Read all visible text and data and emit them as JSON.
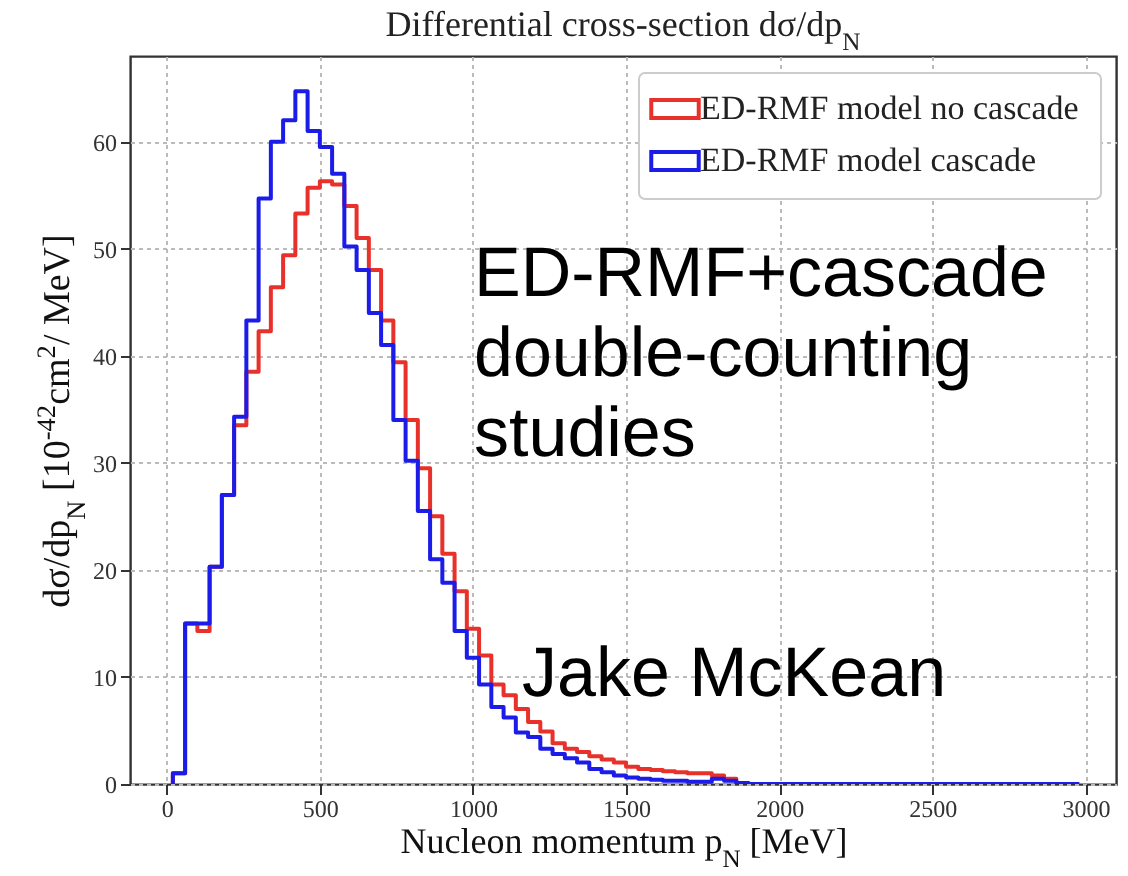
{
  "chart_data": {
    "type": "histogram",
    "title": "Differential cross-section dσ/dp$_{N}$",
    "xlabel": "Nucleon momentum p$_{N}$ [MeV]",
    "ylabel": "dσ/dp$_{N}$ [10$^{-42}$cm$^{2}$/ MeV]",
    "bins": [
      20,
      60,
      100,
      140,
      180,
      220,
      260,
      300,
      340,
      380,
      420,
      460,
      500,
      540,
      580,
      620,
      660,
      700,
      740,
      780,
      820,
      860,
      900,
      940,
      980,
      1020,
      1060,
      1100,
      1140,
      1180,
      1220,
      1260,
      1300,
      1340,
      1380,
      1420,
      1460,
      1500,
      1540,
      1580,
      1620,
      1660,
      1700,
      1740,
      1780,
      1820,
      1860,
      1900,
      1940,
      1980,
      2020,
      2060,
      2100,
      2140,
      2180,
      2220,
      2260,
      2300,
      2340,
      2380,
      2420,
      2460,
      2500,
      2540,
      2580,
      2620,
      2660,
      2700,
      2740,
      2780,
      2820,
      2860,
      2900,
      2940,
      2980
    ],
    "series": [
      {
        "name": "ED-RMF model no cascade",
        "color": "#e8312a",
        "values": [
          1.0,
          15,
          14.3,
          20.3,
          27,
          33.5,
          38.5,
          42.3,
          46.4,
          49.4,
          53.3,
          55.7,
          56.3,
          56,
          54,
          51,
          48,
          43.3,
          39.4,
          34,
          29.5,
          25,
          21.5,
          18,
          14.5,
          12,
          9.3,
          8.3,
          7,
          5.8,
          4.9,
          3.8,
          3.3,
          3.0,
          2.6,
          2.3,
          2.0,
          1.6,
          1.4,
          1.3,
          1.2,
          1.1,
          1.0,
          1.0,
          0.8,
          0.5,
          0,
          0,
          0,
          0,
          0,
          0,
          0,
          0,
          0,
          0,
          0,
          0,
          0,
          0,
          0,
          0,
          0,
          0,
          0,
          0,
          0,
          0,
          0,
          0,
          0,
          0,
          0,
          0
        ]
      },
      {
        "name": "ED-RMF model cascade",
        "color": "#1c1ce8",
        "values": [
          1.0,
          15,
          15,
          20.3,
          27,
          34.3,
          43.3,
          54.7,
          60,
          62,
          64.7,
          61,
          59.5,
          57,
          50.2,
          48,
          44,
          41,
          34,
          30.2,
          25.5,
          21,
          18.8,
          14.3,
          11.8,
          9.3,
          7.2,
          6.2,
          4.8,
          4.4,
          3.3,
          2.8,
          2.4,
          2.0,
          1.4,
          1.1,
          0.8,
          0.6,
          0.5,
          0.4,
          0.3,
          0.3,
          0.2,
          0.2,
          0.5,
          0.3,
          0.1,
          0,
          0,
          0,
          0,
          0,
          0,
          0,
          0,
          0,
          0,
          0,
          0,
          0,
          0,
          0,
          0,
          0,
          0,
          0,
          0,
          0,
          0,
          0,
          0,
          0,
          0,
          0
        ]
      }
    ],
    "xlim": [
      -120,
      3100
    ],
    "xticks": [
      0,
      500,
      1000,
      1500,
      2000,
      2500,
      3000
    ],
    "ylim": [
      0,
      68
    ],
    "yticks": [
      0,
      10,
      20,
      30,
      40,
      50,
      60
    ],
    "grid": true,
    "legend": "top right",
    "annotations": [
      "ED-RMF+cascade double-counting studies",
      "Jake McKean"
    ]
  }
}
